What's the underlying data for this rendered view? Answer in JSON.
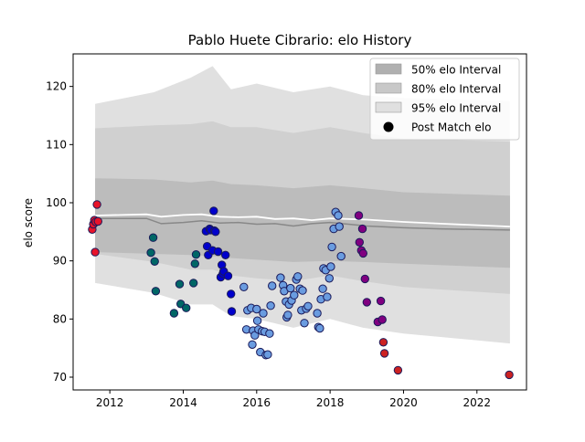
{
  "chart_data": {
    "type": "scatter",
    "title": "Pablo Huete Cibrario: elo History",
    "xlabel": "",
    "ylabel": "elo score",
    "xlim": [
      2011.0,
      2023.35
    ],
    "ylim": [
      67.8,
      125.6
    ],
    "x_ticks": [
      {
        "value": 2012,
        "label": "2012"
      },
      {
        "value": 2014,
        "label": "2014"
      },
      {
        "value": 2016,
        "label": "2016"
      },
      {
        "value": 2018,
        "label": "2018"
      },
      {
        "value": 2020,
        "label": "2020"
      },
      {
        "value": 2022,
        "label": "2022"
      }
    ],
    "y_ticks": [
      {
        "value": 70,
        "label": "70"
      },
      {
        "value": 80,
        "label": "80"
      },
      {
        "value": 90,
        "label": "90"
      },
      {
        "value": 100,
        "label": "100"
      },
      {
        "value": 110,
        "label": "110"
      },
      {
        "value": 120,
        "label": "120"
      }
    ],
    "grid": false,
    "legend": {
      "position": "top-right",
      "entries": [
        {
          "label": "50% elo Interval",
          "kind": "patch",
          "color": "#b0b0b0"
        },
        {
          "label": "80% elo Interval",
          "kind": "patch",
          "color": "#c8c8c8"
        },
        {
          "label": "95% elo Interval",
          "kind": "patch",
          "color": "#e0e0e0"
        },
        {
          "label": "Post Match elo",
          "kind": "marker",
          "color": "#000000"
        }
      ]
    },
    "bands": [
      {
        "name": "95% elo Interval",
        "color": "#e0e0e0",
        "x": [
          2011.6,
          2013.2,
          2014.2,
          2014.8,
          2015.3,
          2016.0,
          2017.0,
          2018.0,
          2018.9,
          2020.0,
          2022.9
        ],
        "upper": [
          117.0,
          119.0,
          121.5,
          123.5,
          119.5,
          120.5,
          119.0,
          120.0,
          118.5,
          118.0,
          117.5
        ],
        "lower": [
          86.2,
          84.5,
          82.5,
          82.5,
          80.5,
          80.0,
          78.5,
          80.0,
          78.5,
          77.5,
          75.8
        ]
      },
      {
        "name": "80% elo Interval",
        "color": "#d0d0d0",
        "x": [
          2011.6,
          2013.2,
          2014.2,
          2014.8,
          2015.3,
          2016.0,
          2017.0,
          2018.0,
          2018.9,
          2020.0,
          2022.9
        ],
        "upper": [
          112.8,
          113.3,
          113.5,
          114.0,
          113.0,
          113.0,
          112.0,
          113.0,
          112.0,
          111.0,
          110.5
        ],
        "lower": [
          91.2,
          89.8,
          88.5,
          88.5,
          87.5,
          87.0,
          86.5,
          87.5,
          86.5,
          85.5,
          84.3
        ]
      },
      {
        "name": "50% elo Interval",
        "color": "#bcbcbc",
        "x": [
          2011.6,
          2013.2,
          2014.2,
          2014.8,
          2015.3,
          2016.0,
          2017.0,
          2018.0,
          2018.9,
          2020.0,
          2022.9
        ],
        "upper": [
          104.2,
          104.0,
          103.5,
          103.8,
          103.2,
          103.0,
          102.5,
          103.0,
          102.5,
          101.8,
          101.2
        ],
        "lower": [
          91.5,
          91.2,
          91.0,
          90.8,
          90.5,
          90.2,
          89.8,
          90.0,
          89.8,
          89.5,
          88.8
        ]
      }
    ],
    "lines": [
      {
        "name": "mean",
        "color": "#888888",
        "x": [
          2011.6,
          2013.0,
          2013.4,
          2014.0,
          2014.5,
          2015.0,
          2015.5,
          2016.0,
          2016.5,
          2017.0,
          2017.5,
          2018.0,
          2018.5,
          2019.0,
          2020.0,
          2021.0,
          2022.9
        ],
        "y": [
          97.3,
          97.3,
          96.4,
          96.6,
          96.9,
          96.5,
          96.6,
          96.3,
          96.4,
          96.0,
          96.4,
          96.6,
          96.3,
          96.0,
          95.7,
          95.5,
          95.3
        ]
      },
      {
        "name": "median",
        "color": "#ffffff",
        "x": [
          2011.6,
          2013.0,
          2013.4,
          2014.0,
          2014.5,
          2015.0,
          2015.5,
          2016.0,
          2016.5,
          2017.0,
          2017.5,
          2018.0,
          2018.5,
          2019.0,
          2020.0,
          2021.0,
          2022.9
        ],
        "y": [
          97.8,
          98.0,
          97.6,
          97.9,
          98.0,
          97.6,
          97.5,
          97.6,
          97.2,
          97.3,
          97.0,
          97.3,
          97.2,
          97.1,
          96.7,
          96.4,
          95.9
        ]
      }
    ],
    "series": [
      {
        "color": "#e8132a",
        "points": [
          [
            2011.52,
            95.4
          ],
          [
            2011.55,
            96.3
          ],
          [
            2011.58,
            97.0
          ],
          [
            2011.6,
            91.5
          ],
          [
            2011.62,
            96.7
          ],
          [
            2011.65,
            99.7
          ],
          [
            2011.68,
            96.8
          ]
        ]
      },
      {
        "color": "#006666",
        "points": [
          [
            2013.12,
            91.4
          ],
          [
            2013.18,
            94.0
          ],
          [
            2013.22,
            89.9
          ],
          [
            2013.25,
            84.8
          ],
          [
            2013.75,
            81.0
          ],
          [
            2013.9,
            86.0
          ],
          [
            2013.93,
            82.6
          ],
          [
            2014.08,
            81.9
          ],
          [
            2014.28,
            86.2
          ],
          [
            2014.32,
            89.5
          ],
          [
            2014.35,
            91.1
          ]
        ]
      },
      {
        "color": "#0000cc",
        "points": [
          [
            2014.62,
            95.1
          ],
          [
            2014.65,
            92.5
          ],
          [
            2014.68,
            91.0
          ],
          [
            2014.72,
            95.5
          ],
          [
            2014.75,
            95.3
          ],
          [
            2014.8,
            91.8
          ],
          [
            2014.83,
            98.6
          ],
          [
            2014.85,
            95.2
          ],
          [
            2014.88,
            95.0
          ],
          [
            2014.95,
            91.6
          ],
          [
            2015.02,
            87.2
          ],
          [
            2015.05,
            89.3
          ],
          [
            2015.08,
            87.8
          ],
          [
            2015.1,
            88.2
          ],
          [
            2015.15,
            91.0
          ],
          [
            2015.22,
            87.4
          ],
          [
            2015.3,
            84.3
          ],
          [
            2015.32,
            81.3
          ]
        ]
      },
      {
        "color": "#6a9ce0",
        "points": [
          [
            2015.65,
            85.5
          ],
          [
            2015.72,
            78.2
          ],
          [
            2015.75,
            81.5
          ],
          [
            2015.85,
            81.9
          ],
          [
            2015.88,
            75.6
          ],
          [
            2015.9,
            78.0
          ],
          [
            2015.95,
            77.2
          ],
          [
            2016.0,
            81.7
          ],
          [
            2016.02,
            79.7
          ],
          [
            2016.05,
            78.2
          ],
          [
            2016.1,
            74.3
          ],
          [
            2016.15,
            77.9
          ],
          [
            2016.18,
            81.0
          ],
          [
            2016.22,
            77.8
          ],
          [
            2016.25,
            73.8
          ],
          [
            2016.3,
            73.9
          ],
          [
            2016.35,
            77.5
          ],
          [
            2016.38,
            82.3
          ],
          [
            2016.42,
            85.7
          ],
          [
            2016.65,
            87.1
          ],
          [
            2016.72,
            85.8
          ],
          [
            2016.75,
            84.8
          ],
          [
            2016.8,
            83.0
          ],
          [
            2016.82,
            80.3
          ],
          [
            2016.85,
            80.7
          ],
          [
            2016.88,
            82.5
          ],
          [
            2016.92,
            85.3
          ],
          [
            2016.95,
            83.2
          ],
          [
            2017.02,
            84.1
          ],
          [
            2017.08,
            86.8
          ],
          [
            2017.12,
            87.3
          ],
          [
            2017.18,
            85.2
          ],
          [
            2017.22,
            81.5
          ],
          [
            2017.25,
            84.9
          ],
          [
            2017.3,
            79.3
          ],
          [
            2017.35,
            81.8
          ],
          [
            2017.4,
            82.2
          ],
          [
            2017.65,
            81.0
          ],
          [
            2017.68,
            78.6
          ],
          [
            2017.72,
            78.4
          ],
          [
            2017.75,
            83.4
          ],
          [
            2017.8,
            85.2
          ],
          [
            2017.82,
            88.7
          ],
          [
            2017.88,
            88.4
          ],
          [
            2017.92,
            83.8
          ],
          [
            2017.98,
            87.0
          ],
          [
            2018.02,
            89.0
          ],
          [
            2018.05,
            92.4
          ],
          [
            2018.1,
            95.5
          ],
          [
            2018.15,
            98.4
          ],
          [
            2018.22,
            97.8
          ],
          [
            2018.25,
            95.9
          ],
          [
            2018.3,
            90.8
          ]
        ]
      },
      {
        "color": "#800080",
        "points": [
          [
            2018.78,
            97.8
          ],
          [
            2018.8,
            93.2
          ],
          [
            2018.85,
            91.8
          ],
          [
            2018.88,
            95.5
          ],
          [
            2018.9,
            91.3
          ],
          [
            2018.95,
            86.9
          ],
          [
            2019.0,
            82.9
          ],
          [
            2019.3,
            79.5
          ],
          [
            2019.38,
            83.1
          ],
          [
            2019.42,
            79.9
          ]
        ]
      },
      {
        "color": "#cc2222",
        "points": [
          [
            2019.45,
            76.0
          ],
          [
            2019.48,
            74.1
          ],
          [
            2019.85,
            71.2
          ],
          [
            2022.88,
            70.4
          ]
        ]
      }
    ]
  }
}
